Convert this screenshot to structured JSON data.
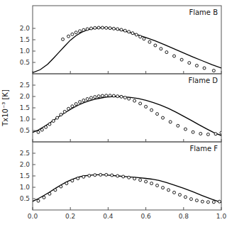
{
  "chart_data": [
    {
      "type": "line",
      "title": "Flame B",
      "xlim": [
        0.0,
        1.0
      ],
      "ylim": [
        0.0,
        3.0
      ],
      "xticks": [
        0,
        0.2,
        0.4,
        0.6,
        0.8,
        1
      ],
      "yticks": [
        0.5,
        {
          "value": 1,
          "label": "1.0"
        },
        1.5,
        {
          "value": 2,
          "label": "2.0"
        }
      ],
      "tick_labels": "y",
      "series": [
        {
          "type": "line",
          "color": "#000000",
          "x": [
            0.0,
            0.04,
            0.08,
            0.11,
            0.14,
            0.17,
            0.2,
            0.23,
            0.26,
            0.29,
            0.32,
            0.35,
            0.38,
            0.41,
            0.44,
            0.47,
            0.51,
            0.55,
            0.6,
            0.65,
            0.7,
            0.75,
            0.8,
            0.85,
            0.9,
            0.95,
            1.0
          ],
          "values": [
            0.05,
            0.18,
            0.42,
            0.68,
            0.95,
            1.22,
            1.48,
            1.68,
            1.83,
            1.93,
            1.99,
            2.02,
            2.03,
            2.01,
            1.97,
            1.92,
            1.83,
            1.73,
            1.6,
            1.45,
            1.28,
            1.1,
            0.92,
            0.74,
            0.57,
            0.4,
            0.25
          ]
        },
        {
          "type": "scatter",
          "color": "#000000",
          "marker": "circle",
          "x": [
            0.16,
            0.19,
            0.21,
            0.23,
            0.25,
            0.27,
            0.29,
            0.31,
            0.33,
            0.35,
            0.37,
            0.39,
            0.41,
            0.43,
            0.45,
            0.47,
            0.49,
            0.51,
            0.53,
            0.55,
            0.57,
            0.59,
            0.62,
            0.65,
            0.68,
            0.71,
            0.75,
            0.79,
            0.83,
            0.87,
            0.91,
            0.96
          ],
          "values": [
            1.52,
            1.65,
            1.74,
            1.82,
            1.88,
            1.93,
            1.97,
            2.0,
            2.02,
            2.03,
            2.03,
            2.02,
            2.01,
            1.99,
            1.97,
            1.94,
            1.9,
            1.85,
            1.79,
            1.72,
            1.63,
            1.54,
            1.4,
            1.25,
            1.1,
            0.95,
            0.78,
            0.62,
            0.48,
            0.36,
            0.25,
            0.14
          ]
        }
      ]
    },
    {
      "type": "line",
      "title": "Flame D",
      "ylabel": "Tx10⁻³ [K]",
      "xlim": [
        0.0,
        1.0
      ],
      "ylim": [
        0.0,
        3.0
      ],
      "xticks": [
        0,
        0.2,
        0.4,
        0.6,
        0.8,
        1
      ],
      "yticks": [
        0.5,
        {
          "value": 1,
          "label": "1.0"
        },
        1.5,
        {
          "value": 2,
          "label": "2.0"
        },
        2.5
      ],
      "tick_labels": "y",
      "series": [
        {
          "type": "line",
          "color": "#000000",
          "x": [
            0.0,
            0.03,
            0.06,
            0.09,
            0.12,
            0.15,
            0.18,
            0.21,
            0.24,
            0.27,
            0.3,
            0.33,
            0.36,
            0.39,
            0.42,
            0.45,
            0.48,
            0.52,
            0.56,
            0.6,
            0.64,
            0.68,
            0.72,
            0.76,
            0.8,
            0.84,
            0.88,
            0.92,
            0.96,
            1.0
          ],
          "values": [
            0.42,
            0.52,
            0.67,
            0.83,
            1.0,
            1.17,
            1.33,
            1.48,
            1.61,
            1.72,
            1.81,
            1.88,
            1.93,
            1.97,
            1.99,
            2.0,
            1.99,
            1.96,
            1.91,
            1.83,
            1.73,
            1.61,
            1.47,
            1.31,
            1.13,
            0.95,
            0.76,
            0.58,
            0.41,
            0.28
          ]
        },
        {
          "type": "scatter",
          "color": "#000000",
          "marker": "circle",
          "x": [
            0.03,
            0.05,
            0.07,
            0.09,
            0.11,
            0.13,
            0.15,
            0.17,
            0.19,
            0.21,
            0.23,
            0.25,
            0.27,
            0.29,
            0.31,
            0.33,
            0.35,
            0.37,
            0.39,
            0.41,
            0.43,
            0.45,
            0.47,
            0.49,
            0.51,
            0.54,
            0.57,
            0.6,
            0.63,
            0.66,
            0.69,
            0.73,
            0.77,
            0.81,
            0.85,
            0.89,
            0.93,
            0.97,
            1.0
          ],
          "values": [
            0.43,
            0.53,
            0.65,
            0.78,
            0.92,
            1.06,
            1.2,
            1.33,
            1.46,
            1.57,
            1.67,
            1.76,
            1.83,
            1.89,
            1.94,
            1.98,
            2.01,
            2.03,
            2.04,
            2.04,
            2.03,
            2.01,
            1.99,
            1.95,
            1.9,
            1.81,
            1.69,
            1.55,
            1.4,
            1.23,
            1.06,
            0.88,
            0.71,
            0.56,
            0.43,
            0.36,
            0.33,
            0.35,
            0.4
          ]
        }
      ]
    },
    {
      "type": "line",
      "title": "Flame F",
      "xlim": [
        0.0,
        1.0
      ],
      "ylim": [
        0.0,
        3.0
      ],
      "xticks": [
        {
          "value": 0,
          "label": "0.0"
        },
        {
          "value": 0.2,
          "label": "0.2"
        },
        {
          "value": 0.4,
          "label": "0.4"
        },
        {
          "value": 0.6,
          "label": "0.6"
        },
        {
          "value": 0.8,
          "label": "0.8"
        },
        {
          "value": 1,
          "label": "1.0"
        }
      ],
      "yticks": [
        0.5,
        {
          "value": 1,
          "label": "1.0"
        },
        1.5,
        {
          "value": 2,
          "label": "2.0"
        },
        2.5
      ],
      "series": [
        {
          "type": "line",
          "color": "#000000",
          "x": [
            0.0,
            0.03,
            0.06,
            0.09,
            0.12,
            0.15,
            0.18,
            0.21,
            0.24,
            0.27,
            0.3,
            0.33,
            0.36,
            0.39,
            0.42,
            0.45,
            0.48,
            0.51,
            0.54,
            0.57,
            0.6,
            0.63,
            0.67,
            0.71,
            0.75,
            0.8,
            0.85,
            0.9,
            0.95,
            1.0
          ],
          "values": [
            0.38,
            0.5,
            0.64,
            0.79,
            0.95,
            1.1,
            1.24,
            1.35,
            1.44,
            1.5,
            1.53,
            1.55,
            1.55,
            1.54,
            1.52,
            1.5,
            1.48,
            1.46,
            1.44,
            1.42,
            1.39,
            1.36,
            1.3,
            1.21,
            1.1,
            0.96,
            0.8,
            0.63,
            0.47,
            0.33
          ]
        },
        {
          "type": "scatter",
          "color": "#000000",
          "marker": "circle",
          "x": [
            0.03,
            0.06,
            0.09,
            0.12,
            0.15,
            0.18,
            0.21,
            0.24,
            0.27,
            0.3,
            0.33,
            0.36,
            0.39,
            0.42,
            0.45,
            0.48,
            0.51,
            0.54,
            0.57,
            0.6,
            0.63,
            0.66,
            0.69,
            0.72,
            0.75,
            0.78,
            0.81,
            0.84,
            0.87,
            0.9,
            0.93,
            0.96,
            0.99
          ],
          "values": [
            0.4,
            0.55,
            0.71,
            0.88,
            1.03,
            1.17,
            1.29,
            1.39,
            1.46,
            1.51,
            1.54,
            1.55,
            1.55,
            1.53,
            1.5,
            1.47,
            1.43,
            1.38,
            1.32,
            1.25,
            1.17,
            1.08,
            0.98,
            0.88,
            0.77,
            0.67,
            0.57,
            0.48,
            0.42,
            0.37,
            0.35,
            0.35,
            0.37
          ]
        }
      ]
    }
  ]
}
